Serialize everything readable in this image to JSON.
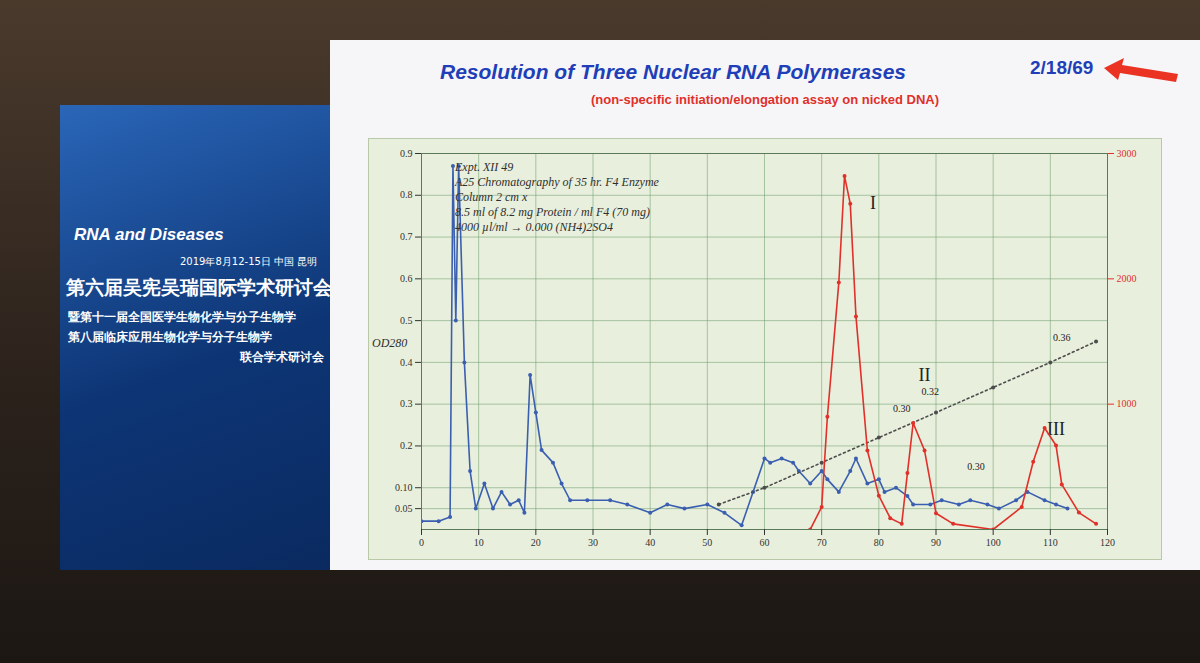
{
  "slide": {
    "date": "2/18/69",
    "banner": {
      "event": "RNA and Diseases",
      "when": "2019年8月12-15日 中国 昆明",
      "title": "第六届吴宪吴瑞国际学术研讨会",
      "line1": "暨第十一届全国医学生物化学与分子生物学",
      "line2": "第八届临床应用生物化学与分子生物学",
      "joint": "联合学术研讨会"
    }
  },
  "chart_data": {
    "type": "line",
    "title": "Resolution of Three Nuclear RNA Polymerases",
    "subtitle": "(non-specific initiation/elongation assay on nicked DNA)",
    "y_label": "OD280",
    "notes": [
      "Expt. XII 49",
      "A25 Chromatography of 35 hr. F4 Enzyme",
      "Column 2 cm x",
      "8.5 ml of 8.2 mg Protein / ml F4 (70 mg)",
      "4000 µl/ml → 0.000 (NH4)2SO4"
    ],
    "xlim": [
      0,
      120
    ],
    "xticks": [
      0,
      10,
      20,
      30,
      40,
      50,
      60,
      70,
      80,
      90,
      100,
      110,
      120
    ],
    "ylim": [
      0,
      0.9
    ],
    "yticks": [
      0.05,
      {
        "value": 0.1,
        "label": "0.10"
      },
      0.2,
      0.3,
      0.4,
      0.5,
      0.6,
      0.7,
      0.8,
      0.9
    ],
    "y2lim": [
      0,
      3000
    ],
    "y2ticks": [
      1000,
      2000,
      3000
    ],
    "grid": true,
    "series": [
      {
        "color": "#3b5fb0",
        "marker": "dot",
        "line_style": "solid",
        "x": [
          0,
          3,
          5,
          5.5,
          6,
          6.5,
          7.5,
          8.5,
          9.5,
          11,
          12.5,
          14,
          15.5,
          17,
          18,
          19,
          20,
          21,
          23,
          24.5,
          26,
          29,
          33,
          36,
          40,
          43,
          46,
          50,
          53,
          56,
          58,
          60,
          61,
          63,
          65,
          66,
          68,
          70,
          71,
          73,
          75,
          76,
          78,
          80,
          81,
          83,
          85,
          86,
          89,
          91,
          94,
          96,
          99,
          101,
          104,
          106,
          109,
          111,
          113
        ],
        "values": [
          0.02,
          0.02,
          0.03,
          0.87,
          0.5,
          0.87,
          0.4,
          0.14,
          0.05,
          0.11,
          0.05,
          0.09,
          0.06,
          0.07,
          0.04,
          0.37,
          0.28,
          0.19,
          0.16,
          0.11,
          0.07,
          0.07,
          0.07,
          0.06,
          0.04,
          0.06,
          0.05,
          0.06,
          0.04,
          0.01,
          0.09,
          0.17,
          0.16,
          0.17,
          0.16,
          0.14,
          0.11,
          0.14,
          0.12,
          0.09,
          0.14,
          0.17,
          0.11,
          0.12,
          0.09,
          0.1,
          0.08,
          0.06,
          0.06,
          0.07,
          0.06,
          0.07,
          0.06,
          0.05,
          0.07,
          0.09,
          0.07,
          0.06,
          0.05
        ]
      },
      {
        "color": "#e0302a",
        "axis": "y2",
        "marker": "dot",
        "line_style": "solid",
        "x": [
          68,
          70,
          71,
          73,
          74,
          75,
          76,
          78,
          80,
          82,
          84,
          85,
          86,
          88,
          90,
          93,
          100,
          105,
          107,
          109,
          111,
          112,
          115,
          118
        ],
        "values": [
          0,
          180,
          900,
          1970,
          2820,
          2600,
          1700,
          630,
          270,
          90,
          45,
          450,
          850,
          630,
          130,
          45,
          0,
          180,
          540,
          810,
          670,
          360,
          135,
          45
        ]
      },
      {
        "color": "#4d4d4d",
        "marker": "dot",
        "line_style": "dotted",
        "x": [
          52,
          60,
          70,
          80,
          90,
          100,
          110,
          118
        ],
        "values": [
          0.06,
          0.1,
          0.16,
          0.22,
          0.28,
          0.34,
          0.4,
          0.45
        ]
      }
    ],
    "annotations": [
      {
        "text": "I",
        "x": 79,
        "y": 0.78
      },
      {
        "text": "II",
        "x": 88,
        "y": 0.37
      },
      {
        "text": "III",
        "x": 111,
        "y": 0.24
      },
      {
        "text": "0.30",
        "x": 84,
        "y": 0.29
      },
      {
        "text": "0.32",
        "x": 89,
        "y": 0.33
      },
      {
        "text": "0.30",
        "x": 97,
        "y": 0.15
      },
      {
        "text": "0.36",
        "x": 112,
        "y": 0.46
      }
    ]
  }
}
